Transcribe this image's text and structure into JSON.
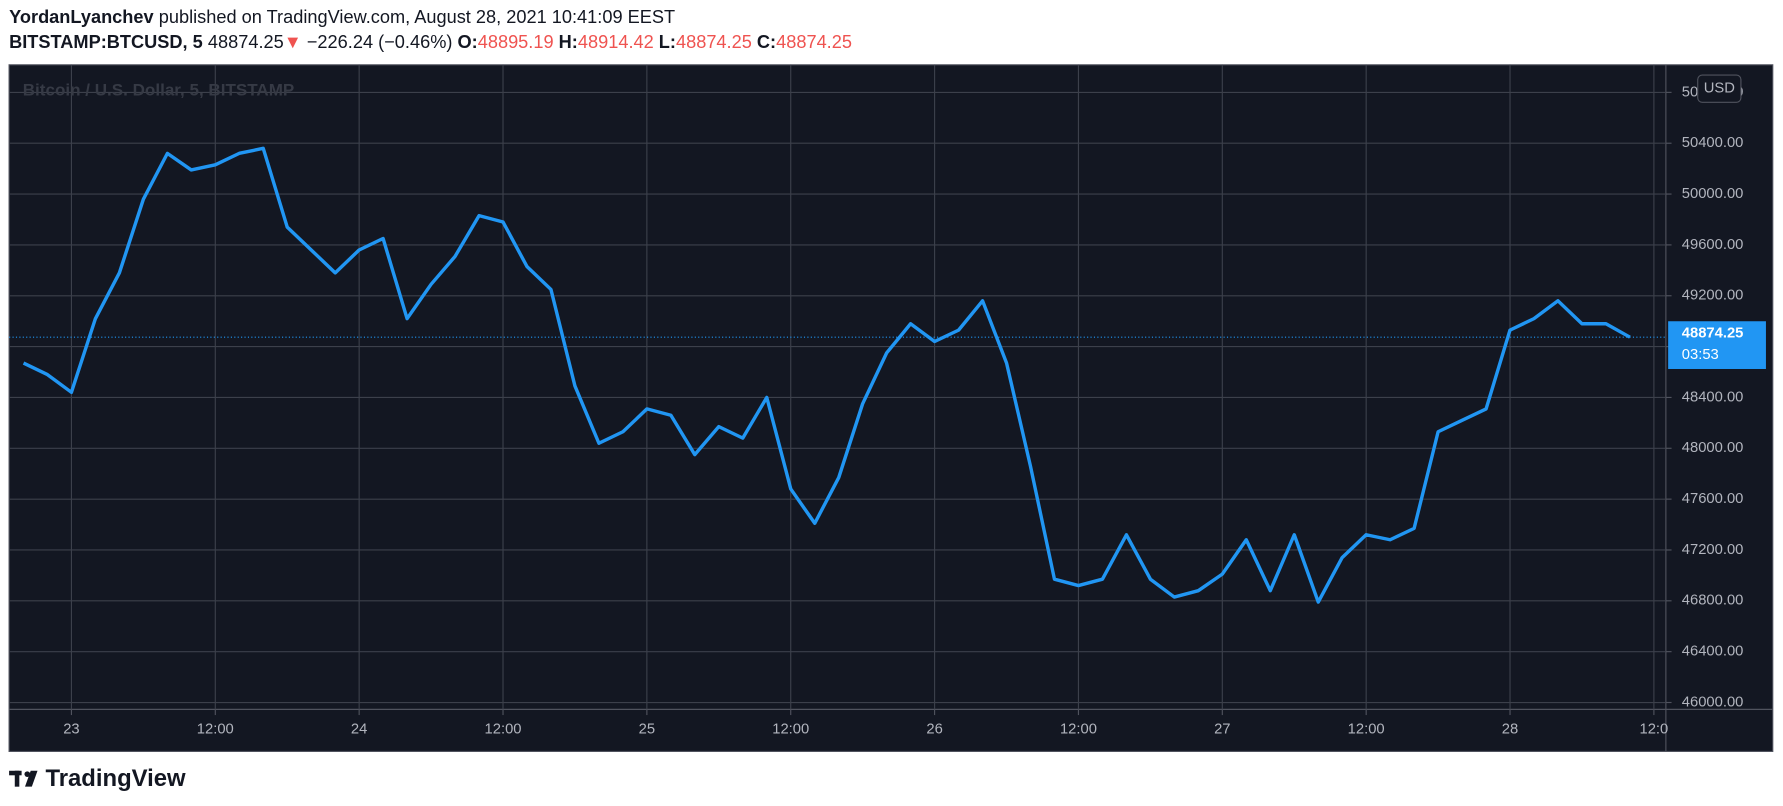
{
  "header": {
    "author": "YordanLyanchev",
    "published": "published on TradingView.com, August 28, 2021 10:41:09 EEST",
    "symbol": "BITSTAMP:BTCUSD, 5",
    "last": "48874.25",
    "change": "−226.24 (−0.46%)",
    "open_label": "O:",
    "open": "48895.19",
    "high_label": "H:",
    "high": "48914.42",
    "low_label": "L:",
    "low": "48874.25",
    "close_label": "C:",
    "close": "48874.25"
  },
  "chart_data": {
    "type": "line",
    "series": [
      {
        "name": "Bitcoin / U.S. Dollar, 5, BITSTAMP",
        "color": "#2196f3",
        "values": [
          48670,
          48580,
          48440,
          49020,
          49380,
          49960,
          50320,
          50190,
          50230,
          50320,
          50360,
          49740,
          49560,
          49380,
          49560,
          49650,
          49020,
          49290,
          49510,
          49830,
          49780,
          49430,
          49250,
          48490,
          48040,
          48130,
          48310,
          48260,
          47950,
          48170,
          48080,
          48400,
          47680,
          47410,
          47770,
          48350,
          48750,
          48980,
          48840,
          48930,
          49160,
          48670,
          47860,
          46970,
          46920,
          46970,
          47320,
          46970,
          46830,
          46880,
          47010,
          47280,
          46880,
          47320,
          46790,
          47140,
          47320,
          47280,
          47370,
          48130,
          48220,
          48310,
          48930,
          49020,
          49160,
          48980,
          48980,
          48874.25
        ]
      }
    ],
    "xlim": [
      -0.6,
      68.5
    ],
    "xticks": [
      {
        "value": 2,
        "label": "23"
      },
      {
        "value": 8,
        "label": "12:00"
      },
      {
        "value": 14,
        "label": "24"
      },
      {
        "value": 20,
        "label": "12:00"
      },
      {
        "value": 26,
        "label": "25"
      },
      {
        "value": 32,
        "label": "12:00"
      },
      {
        "value": 38,
        "label": "26"
      },
      {
        "value": 44,
        "label": "12:00"
      },
      {
        "value": 50,
        "label": "27"
      },
      {
        "value": 56,
        "label": "12:00"
      },
      {
        "value": 62,
        "label": "28"
      },
      {
        "value": 68,
        "label": "12:0"
      }
    ],
    "ylim": [
      45946,
      51017
    ],
    "yticks": [
      {
        "value": 46000,
        "label": "46000.00"
      },
      {
        "value": 46400,
        "label": "46400.00"
      },
      {
        "value": 46800,
        "label": "46800.00"
      },
      {
        "value": 47200,
        "label": "47200.00"
      },
      {
        "value": 47600,
        "label": "47600.00"
      },
      {
        "value": 48000,
        "label": "48000.00"
      },
      {
        "value": 48400,
        "label": "48400.00"
      },
      {
        "value": 48800,
        "label": "48800.00"
      },
      {
        "value": 49200,
        "label": "49200.00"
      },
      {
        "value": 49600,
        "label": "49600.00"
      },
      {
        "value": 50000,
        "label": "50000.00"
      },
      {
        "value": 50400,
        "label": "50400.00"
      },
      {
        "value": 50800,
        "label": "50800.00"
      }
    ],
    "grid": true,
    "y_unit": "USD",
    "countdown": "03:53"
  },
  "footer": {
    "brand": "TradingView"
  }
}
